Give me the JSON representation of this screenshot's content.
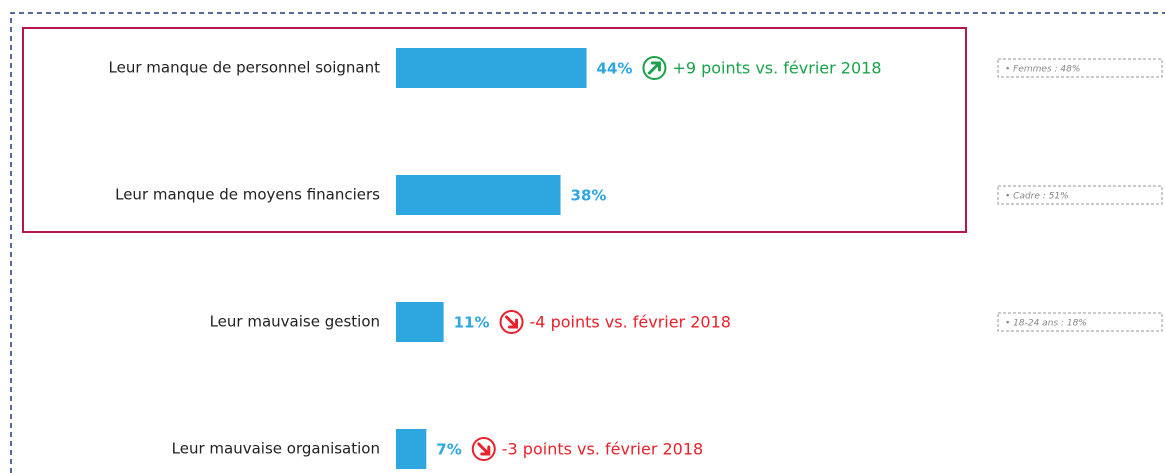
{
  "chart_data": {
    "type": "bar",
    "categories": [
      "Leur manque de personnel soignant",
      "Leur manque de moyens financiers",
      "Leur mauvaise gestion",
      "Leur mauvaise organisation"
    ],
    "values": [
      44,
      38,
      11,
      7
    ],
    "value_labels": [
      "44%",
      "38%",
      "11%",
      "7%"
    ],
    "color": "#2ea7e0",
    "annotations": [
      "+9 points vs. février 2018",
      null,
      "-4 points vs. février 2018",
      "-3 points vs. février 2018"
    ],
    "annotation_colors": [
      "#1aa34a",
      null,
      "#e8212b",
      "#e8212b"
    ],
    "trend": [
      "up",
      null,
      "down",
      "down"
    ],
    "side_notes": [
      "• Femmes : 48%",
      "• Cadre : 51%",
      "• 18-24 ans : 18%",
      null
    ]
  }
}
